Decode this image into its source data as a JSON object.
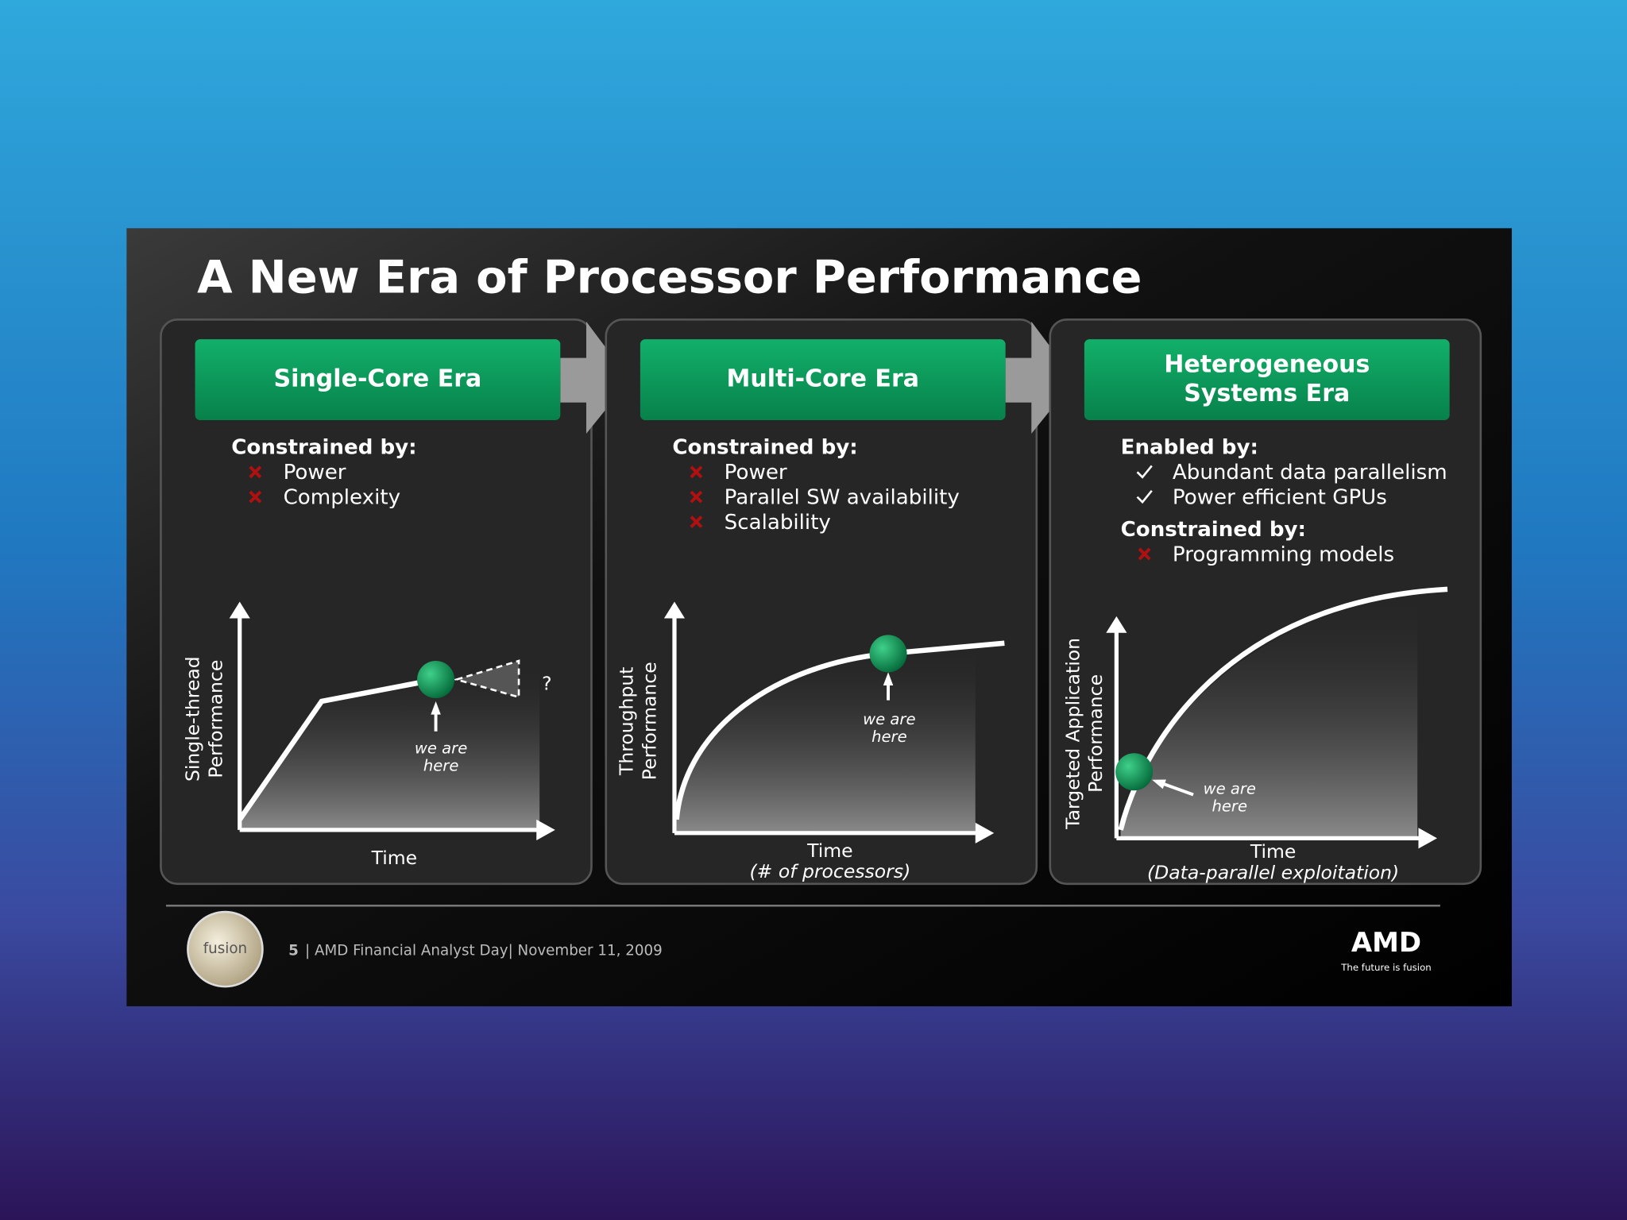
{
  "title": "A New Era of Processor Performance",
  "panels": [
    {
      "header": [
        "Single-Core Era"
      ],
      "sections": [
        {
          "label": "Constrained by:",
          "bullet": "cross",
          "items": [
            "Power",
            "Complexity"
          ]
        }
      ],
      "y_axis": [
        "Single-thread",
        "Performance"
      ],
      "x_axis": [
        "Time"
      ],
      "marker": [
        "we are",
        "here"
      ],
      "unknown": "?"
    },
    {
      "header": [
        "Multi-Core Era"
      ],
      "sections": [
        {
          "label": "Constrained by:",
          "bullet": "cross",
          "items": [
            "Power",
            "Parallel SW availability",
            "Scalability"
          ]
        }
      ],
      "y_axis": [
        "Throughput",
        "Performance"
      ],
      "x_axis": [
        "Time",
        "(# of processors)"
      ],
      "marker": [
        "we are",
        "here"
      ]
    },
    {
      "header": [
        "Heterogeneous",
        "Systems Era"
      ],
      "sections": [
        {
          "label": "Enabled by:",
          "bullet": "check",
          "items": [
            "Abundant data parallelism",
            "Power efficient GPUs"
          ]
        },
        {
          "label": "Constrained by:",
          "bullet": "cross",
          "items": [
            "Programming models"
          ]
        }
      ],
      "y_axis": [
        "Targeted Application",
        "Performance"
      ],
      "x_axis": [
        "Time",
        "(Data-parallel exploitation)"
      ],
      "marker": [
        "we are",
        "here"
      ]
    }
  ],
  "footer": {
    "logo": "fusion",
    "page": "5",
    "event": "| AMD Financial Analyst Day| November 11, 2009",
    "brand": "AMD",
    "tagline": "The future is fusion"
  }
}
